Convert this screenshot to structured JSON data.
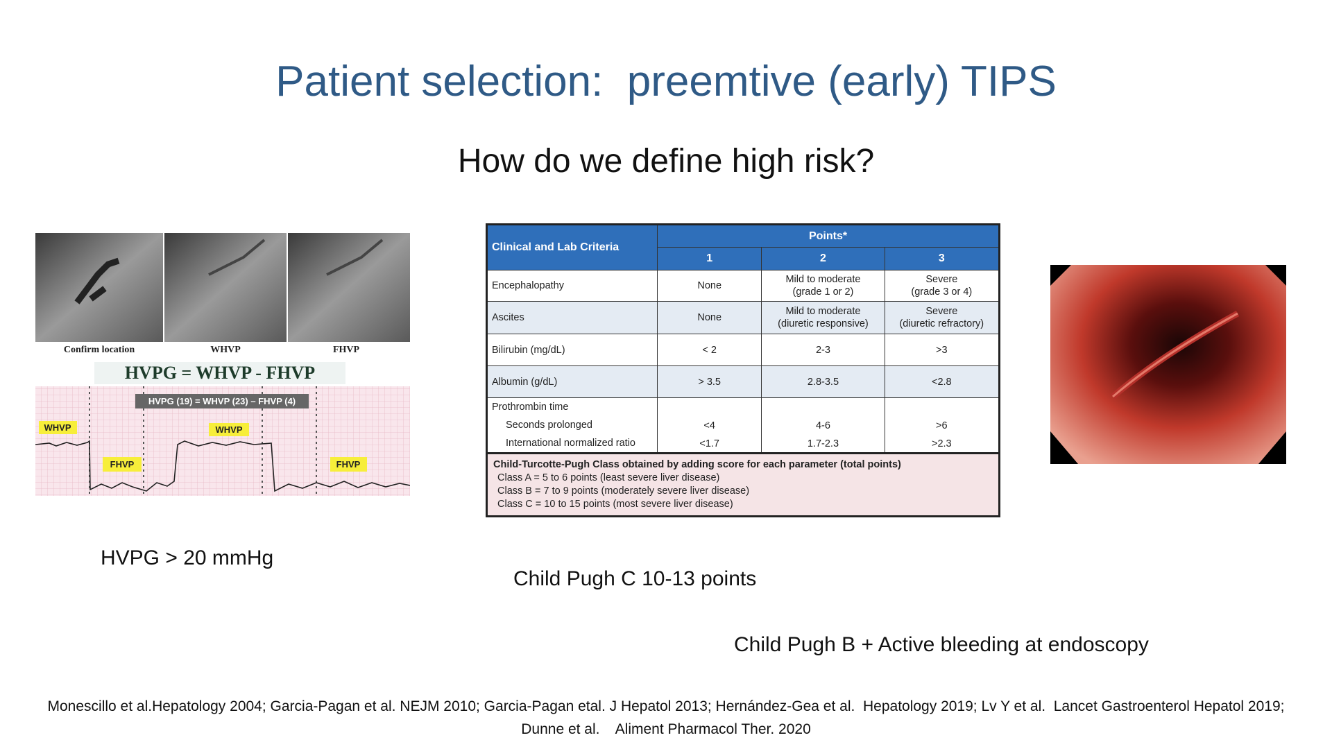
{
  "slide": {
    "title": "Patient selection:  preemtive (early) TIPS",
    "subtitle": "How do we define high risk?",
    "hvpg_figure": {
      "panel_labels": [
        "Confirm location",
        "WHVP",
        "FHVP"
      ],
      "formula": "HVPG = WHVP - FHVP",
      "example": "HVPG (19) = WHVP (23) – FHVP (4)",
      "tracing_labels": [
        "WHVP",
        "WHVP",
        "FHVP",
        "FHVP"
      ]
    },
    "table": {
      "criteria_header": "Clinical and Lab Criteria",
      "points_header": "Points*",
      "point_columns": [
        "1",
        "2",
        "3"
      ],
      "rows": [
        {
          "criterion": "Encephalopathy",
          "values": [
            [
              "None"
            ],
            [
              "Mild to moderate",
              "(grade 1 or 2)"
            ],
            [
              "Severe",
              "(grade 3 or 4)"
            ]
          ]
        },
        {
          "criterion": "Ascites",
          "values": [
            [
              "None"
            ],
            [
              "Mild to moderate",
              "(diuretic responsive)"
            ],
            [
              "Severe",
              "(diuretic refractory)"
            ]
          ]
        },
        {
          "criterion": "Bilirubin (mg/dL)",
          "values": [
            [
              "< 2"
            ],
            [
              "2-3"
            ],
            [
              ">3"
            ]
          ]
        },
        {
          "criterion": "Albumin (g/dL)",
          "values": [
            [
              "> 3.5"
            ],
            [
              "2.8-3.5"
            ],
            [
              "<2.8"
            ]
          ]
        }
      ],
      "prothrombin": {
        "criterion": "Prothrombin time",
        "subrows": [
          {
            "criterion": "Seconds prolonged",
            "values": [
              "<4",
              "4-6",
              ">6"
            ]
          },
          {
            "criterion": "International normalized ratio",
            "values": [
              "<1.7",
              "1.7-2.3",
              ">2.3"
            ]
          }
        ]
      },
      "footer": {
        "heading": "Child-Turcotte-Pugh Class obtained by adding score for each parameter (total points)",
        "lines": [
          "Class A = 5 to 6 points (least severe liver disease)",
          "Class B = 7 to 9 points (moderately severe liver disease)",
          "Class C = 10 to 15 points (most severe liver disease)"
        ]
      }
    },
    "captions": {
      "hvpg": "HVPG > 20 mmHg",
      "child_c": "Child Pugh C 10-13 points",
      "child_b": "Child Pugh B + Active bleeding at endoscopy"
    },
    "references": [
      "Monescillo et al.Hepatology 2004; Garcia-Pagan et al. NEJM 2010; Garcia-Pagan etal. J Hepatol 2013; Hernández-Gea et al.  Hepatology 2019; Lv Y et al.  Lancet Gastroenterol Hepatol 2019;",
      "Dunne et al.    Aliment Pharmacol Ther. 2020"
    ]
  }
}
